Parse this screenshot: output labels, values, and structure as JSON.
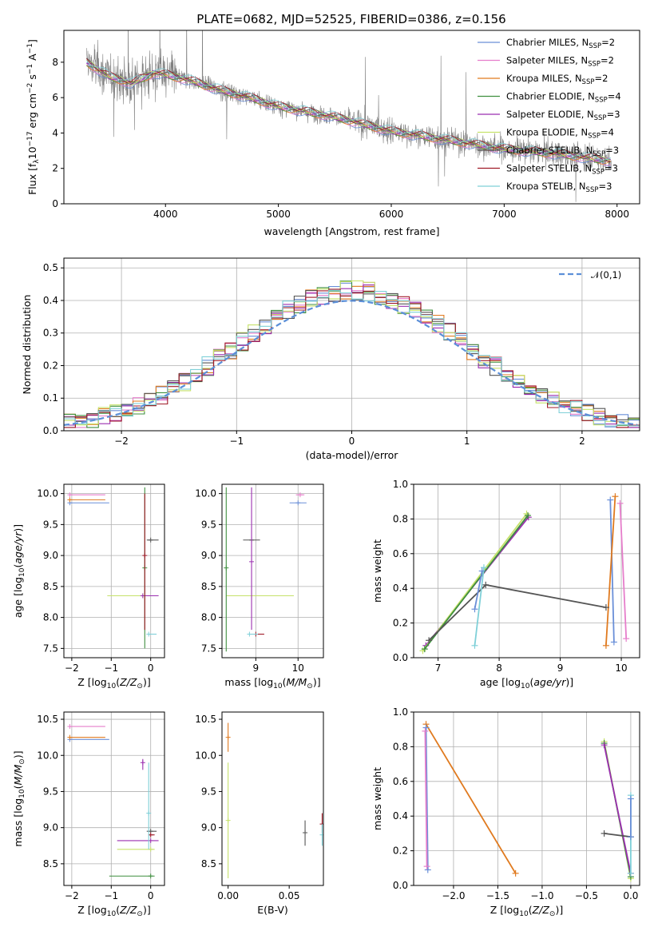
{
  "figure": {
    "title": "PLATE=0682, MJD=52525, FIBERID=0386, z=0.156"
  },
  "colors": {
    "c1": "#6a8fd8",
    "c2": "#e67ecb",
    "c3": "#e07a1f",
    "c4": "#3f8f3f",
    "c5": "#9b2fb0",
    "c6": "#c6e26a",
    "c7": "#555555",
    "c8": "#a01b28",
    "c9": "#7fd0d8",
    "data": "#808080",
    "normal": "#5b8fd8"
  },
  "legend_labels": [
    "Chabrier MILES, N",
    "Salpeter MILES, N",
    "Kroupa MILES, N",
    "Chabrier ELODIE, N",
    "Salpeter ELODIE, N",
    "Kroupa ELODIE, N",
    "Chabrier STELIB, N",
    "Salpeter STELIB, N",
    "Kroupa STELIB, N"
  ],
  "legend_sub": "SSP",
  "legend_counts": [
    "=2",
    "=2",
    "=2",
    "=4",
    "=3",
    "=4",
    "=3",
    "=3",
    "=3"
  ],
  "chart_data": [
    {
      "id": "spectrum",
      "type": "line",
      "title": "PLATE=0682, MJD=52525, FIBERID=0386, z=0.156",
      "xlabel": "wavelength [Angstrom, rest frame]",
      "ylabel": "Flux [f_λ 10^-17 erg cm^-2 s^-1 A^-1]",
      "xlim": [
        3100,
        8200
      ],
      "ylim": [
        0,
        9.8
      ],
      "xticks": [
        4000,
        5000,
        6000,
        7000,
        8000
      ],
      "yticks": [
        0,
        2,
        4,
        6,
        8
      ],
      "grid": false,
      "legend_position": "top-right",
      "model_continuum": {
        "x": [
          3300,
          3500,
          3700,
          3900,
          4000,
          4200,
          4500,
          4800,
          5000,
          5500,
          6000,
          6500,
          7000,
          7500,
          7950
        ],
        "y": [
          8.0,
          7.2,
          6.8,
          7.4,
          7.3,
          7.0,
          6.4,
          5.9,
          5.5,
          4.9,
          4.1,
          3.6,
          3.1,
          2.8,
          2.4
        ]
      }
    },
    {
      "id": "residuals",
      "type": "line",
      "xlabel": "(data-model)/error",
      "ylabel": "Normed distribution",
      "xlim": [
        -2.5,
        2.5
      ],
      "ylim": [
        0,
        0.53
      ],
      "xticks": [
        -2,
        -1,
        0,
        1,
        2
      ],
      "yticks": [
        0.0,
        0.1,
        0.2,
        0.3,
        0.4,
        0.5
      ],
      "grid": true,
      "legend_position": "top-right",
      "legend_label": "𝒩(0,1)",
      "normal": {
        "mu": 0,
        "sigma": 1
      },
      "bin_width": 0.1
    },
    {
      "id": "age_vs_Z",
      "type": "scatter",
      "xlabel": "Z [log10(Z/Z⊙)]",
      "ylabel": "age  [log10(age/yr)]",
      "xlim": [
        -2.2,
        0.35
      ],
      "ylim": [
        7.35,
        10.15
      ],
      "xticks": [
        -2,
        -1,
        0
      ],
      "yticks": [
        7.5,
        8.0,
        8.5,
        9.0,
        9.5,
        10.0
      ],
      "grid": true,
      "points": [
        {
          "s": 1,
          "x": -2.05,
          "y": 9.85,
          "xe": [
            0,
            1.0
          ]
        },
        {
          "s": 2,
          "x": -2.05,
          "y": 9.98,
          "xe": [
            0,
            0.9
          ]
        },
        {
          "s": 3,
          "x": -2.05,
          "y": 9.9,
          "xe": [
            0,
            0.9
          ]
        },
        {
          "s": 7,
          "x": -0.0,
          "y": 9.25,
          "xe": [
            0.1,
            0.2
          ]
        },
        {
          "s": 6,
          "x": -0.2,
          "y": 8.35,
          "xe": [
            0.9,
            0.4
          ]
        },
        {
          "s": 5,
          "x": -0.2,
          "y": 8.35,
          "xe": [
            0,
            0.4
          ]
        },
        {
          "s": 9,
          "x": -0.05,
          "y": 7.73,
          "xe": [
            0,
            0.2
          ]
        },
        {
          "s": 4,
          "x": -0.15,
          "y": 8.8,
          "ye": [
            1.3,
            1.3
          ]
        },
        {
          "s": 8,
          "x": -0.15,
          "y": 9.0,
          "ye": [
            1.2,
            1.0
          ]
        }
      ]
    },
    {
      "id": "age_vs_mass",
      "type": "scatter",
      "xlabel": "mass [log10(M/M⊙)]",
      "ylabel": "",
      "xlim": [
        8.2,
        10.6
      ],
      "ylim": [
        7.35,
        10.15
      ],
      "xticks": [
        9,
        10
      ],
      "yticks": [
        7.5,
        8.0,
        8.5,
        9.0,
        9.5,
        10.0
      ],
      "grid": true,
      "points": [
        {
          "s": 7,
          "x": 8.9,
          "y": 9.25,
          "xe": [
            0.2,
            0.2
          ]
        },
        {
          "s": 6,
          "x": 8.9,
          "y": 8.35,
          "xe": [
            0.6,
            1.0
          ]
        },
        {
          "s": 8,
          "x": 9.0,
          "y": 7.73,
          "xe": [
            0,
            0.2
          ]
        },
        {
          "s": 9,
          "x": 8.85,
          "y": 7.73,
          "xe": [
            0,
            0.2
          ]
        },
        {
          "s": 1,
          "x": 10.0,
          "y": 9.85,
          "xe": [
            0.2,
            0.2
          ]
        },
        {
          "s": 2,
          "x": 10.05,
          "y": 9.98,
          "xe": [
            0.1,
            0.1
          ]
        },
        {
          "s": 4,
          "x": 8.3,
          "y": 8.8,
          "ye": [
            1.35,
            1.3
          ]
        },
        {
          "s": 5,
          "x": 8.9,
          "y": 8.9,
          "ye": [
            1.1,
            1.2
          ]
        }
      ]
    },
    {
      "id": "weight_vs_age",
      "type": "line",
      "xlabel": "age  [log10(age/yr)]",
      "ylabel": "mass weight",
      "xlim": [
        6.6,
        10.3
      ],
      "ylim": [
        0,
        1.0
      ],
      "xticks": [
        7,
        8,
        9,
        10
      ],
      "yticks": [
        0.0,
        0.2,
        0.4,
        0.6,
        0.8,
        1.0
      ],
      "grid": true,
      "series": [
        {
          "s": 1,
          "x": [
            9.82,
            9.88
          ],
          "y": [
            0.91,
            0.09
          ]
        },
        {
          "s": 2,
          "x": [
            9.98,
            10.08
          ],
          "y": [
            0.89,
            0.11
          ]
        },
        {
          "s": 3,
          "x": [
            9.75,
            9.9
          ],
          "y": [
            0.07,
            0.93
          ]
        },
        {
          "s": 5,
          "x": [
            6.8,
            8.48
          ],
          "y": [
            0.07,
            0.81
          ]
        },
        {
          "s": 6,
          "x": [
            6.75,
            8.45
          ],
          "y": [
            0.04,
            0.83
          ]
        },
        {
          "s": 4,
          "x": [
            6.78,
            8.47
          ],
          "y": [
            0.05,
            0.82
          ]
        },
        {
          "s": 7,
          "x": [
            6.85,
            7.78,
            9.75
          ],
          "y": [
            0.1,
            0.42,
            0.29
          ]
        },
        {
          "s": 9,
          "x": [
            7.6,
            7.75
          ],
          "y": [
            0.07,
            0.52
          ]
        },
        {
          "s": 1,
          "x": [
            7.6,
            7.72
          ],
          "y": [
            0.28,
            0.5
          ]
        }
      ]
    },
    {
      "id": "mass_vs_Z",
      "type": "scatter",
      "xlabel": "Z [log10(Z/Z⊙)]",
      "ylabel": "mass [log10(M/M⊙)]",
      "xlim": [
        -2.2,
        0.35
      ],
      "ylim": [
        8.2,
        10.6
      ],
      "xticks": [
        -2,
        -1,
        0
      ],
      "yticks": [
        8.5,
        9.0,
        9.5,
        10.0,
        10.5
      ],
      "grid": true,
      "points": [
        {
          "s": 2,
          "x": -2.05,
          "y": 10.4,
          "xe": [
            0,
            0.9
          ]
        },
        {
          "s": 1,
          "x": -2.05,
          "y": 10.22,
          "xe": [
            0,
            1.0
          ]
        },
        {
          "s": 3,
          "x": -2.05,
          "y": 10.25,
          "xe": [
            0,
            0.9
          ]
        },
        {
          "s": 5,
          "x": -0.2,
          "y": 9.9,
          "ye": [
            0.1,
            0.05
          ]
        },
        {
          "s": 5,
          "x": 0.0,
          "y": 8.82,
          "xe": [
            0.85,
            0.2
          ]
        },
        {
          "s": 6,
          "x": 0.0,
          "y": 8.7,
          "xe": [
            0.85,
            0.1
          ]
        },
        {
          "s": 4,
          "x": 0.0,
          "y": 8.33,
          "xe": [
            1.05,
            0.1
          ]
        },
        {
          "s": 7,
          "x": 0.0,
          "y": 8.95,
          "xe": [
            0.1,
            0.15
          ]
        },
        {
          "s": 8,
          "x": 0.0,
          "y": 8.9,
          "xe": [
            0.05,
            0.1
          ]
        },
        {
          "s": 9,
          "x": -0.05,
          "y": 9.2,
          "ye": [
            0.5,
            0.7
          ]
        }
      ]
    },
    {
      "id": "mass_vs_EBV",
      "type": "scatter",
      "xlabel": "E(B-V)",
      "ylabel": "",
      "xlim": [
        -0.005,
        0.078
      ],
      "ylim": [
        8.2,
        10.6
      ],
      "xticks": [
        0.0,
        0.05
      ],
      "yticks": [
        8.5,
        9.0,
        9.5,
        10.0,
        10.5
      ],
      "grid": false,
      "points": [
        {
          "s": 3,
          "x": 0.0,
          "y": 10.25,
          "ye": [
            0.2,
            0.2
          ]
        },
        {
          "s": 6,
          "x": 0.0,
          "y": 9.1,
          "ye": [
            0.8,
            0.8
          ]
        },
        {
          "s": 7,
          "x": 0.063,
          "y": 8.93,
          "ye": [
            0.18,
            0.17
          ]
        },
        {
          "s": 8,
          "x": 0.077,
          "y": 9.05,
          "ye": [
            0.12,
            0.15
          ]
        },
        {
          "s": 9,
          "x": 0.077,
          "y": 8.9,
          "ye": [
            0.15,
            0.15
          ]
        }
      ]
    },
    {
      "id": "weight_vs_Z",
      "type": "line",
      "xlabel": "Z [log10(Z/Z⊙)]",
      "ylabel": "mass weight",
      "xlim": [
        -2.45,
        0.1
      ],
      "ylim": [
        0,
        1.0
      ],
      "xticks": [
        -2.0,
        -1.5,
        -1.0,
        -0.5,
        0.0
      ],
      "yticks": [
        0.0,
        0.2,
        0.4,
        0.6,
        0.8,
        1.0
      ],
      "grid": true,
      "series": [
        {
          "s": 3,
          "x": [
            -2.31,
            -1.3
          ],
          "y": [
            0.93,
            0.07
          ]
        },
        {
          "s": 1,
          "x": [
            -2.31,
            -2.29
          ],
          "y": [
            0.91,
            0.09
          ]
        },
        {
          "s": 2,
          "x": [
            -2.32,
            -2.3
          ],
          "y": [
            0.89,
            0.11
          ]
        },
        {
          "s": 6,
          "x": [
            -0.3,
            0.0
          ],
          "y": [
            0.83,
            0.04
          ]
        },
        {
          "s": 4,
          "x": [
            -0.3,
            0.0
          ],
          "y": [
            0.82,
            0.05
          ]
        },
        {
          "s": 5,
          "x": [
            -0.3,
            0.0
          ],
          "y": [
            0.81,
            0.07
          ]
        },
        {
          "s": 7,
          "x": [
            -0.3,
            0.0
          ],
          "y": [
            0.3,
            0.28
          ]
        },
        {
          "s": 9,
          "x": [
            0.0,
            0.0
          ],
          "y": [
            0.52,
            0.07
          ]
        },
        {
          "s": 1,
          "x": [
            0.0,
            -0.0
          ],
          "y": [
            0.28,
            0.5
          ]
        }
      ]
    }
  ]
}
